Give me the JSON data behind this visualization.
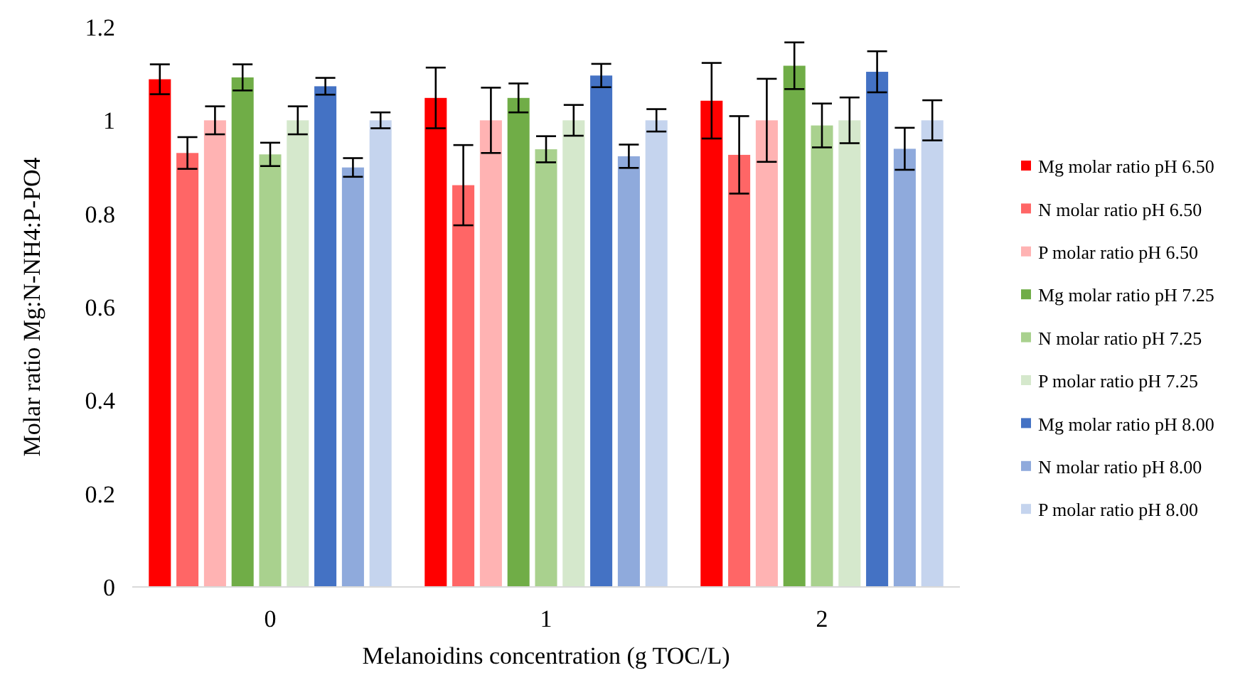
{
  "chart_data": {
    "type": "bar",
    "xlabel": "Melanoidins concentration (g TOC/L)",
    "ylabel": "Molar ratio Mg:N-NH4:P-PO4",
    "categories": [
      "0",
      "1",
      "2"
    ],
    "ylim": [
      0,
      1.2
    ],
    "yticks": [
      {
        "value": 0,
        "label": "0"
      },
      {
        "value": 0.2,
        "label": "0.2"
      },
      {
        "value": 0.4,
        "label": "0.4"
      },
      {
        "value": 0.6,
        "label": "0.6"
      },
      {
        "value": 0.8,
        "label": "0.8"
      },
      {
        "value": 1,
        "label": "1"
      },
      {
        "value": 1.2,
        "label": "1.2"
      }
    ],
    "grid": false,
    "legend": "right",
    "series": [
      {
        "name": "Mg molar ratio pH 6.50",
        "color": "#ff0000",
        "values": [
          1.088,
          1.048,
          1.042
        ],
        "errors": [
          0.032,
          0.065,
          0.081
        ]
      },
      {
        "name": "N molar ratio pH 6.50",
        "color": "#ff6666",
        "values": [
          0.93,
          0.861,
          0.926
        ],
        "errors": [
          0.034,
          0.086,
          0.083
        ]
      },
      {
        "name": "P molar ratio pH 6.50",
        "color": "#ffb3b3",
        "values": [
          1.0,
          1.0,
          1.0
        ],
        "errors": [
          0.03,
          0.07,
          0.089
        ]
      },
      {
        "name": "Mg molar ratio pH 7.25",
        "color": "#70ad47",
        "values": [
          1.092,
          1.048,
          1.117
        ],
        "errors": [
          0.028,
          0.031,
          0.05
        ]
      },
      {
        "name": "N molar ratio pH 7.25",
        "color": "#a9d18e",
        "values": [
          0.927,
          0.938,
          0.989
        ],
        "errors": [
          0.025,
          0.028,
          0.047
        ]
      },
      {
        "name": "P molar ratio pH 7.25",
        "color": "#d5e8cc",
        "values": [
          1.0,
          1.0,
          1.0
        ],
        "errors": [
          0.03,
          0.033,
          0.049
        ]
      },
      {
        "name": "Mg molar ratio pH 8.00",
        "color": "#4472c4",
        "values": [
          1.073,
          1.096,
          1.104
        ],
        "errors": [
          0.018,
          0.025,
          0.044
        ]
      },
      {
        "name": "N molar ratio pH 8.00",
        "color": "#8faadc",
        "values": [
          0.899,
          0.923,
          0.939
        ],
        "errors": [
          0.02,
          0.025,
          0.045
        ]
      },
      {
        "name": "P molar ratio pH 8.00",
        "color": "#c5d4ee",
        "values": [
          1.0,
          1.0,
          1.0
        ],
        "errors": [
          0.017,
          0.024,
          0.043
        ]
      }
    ]
  }
}
